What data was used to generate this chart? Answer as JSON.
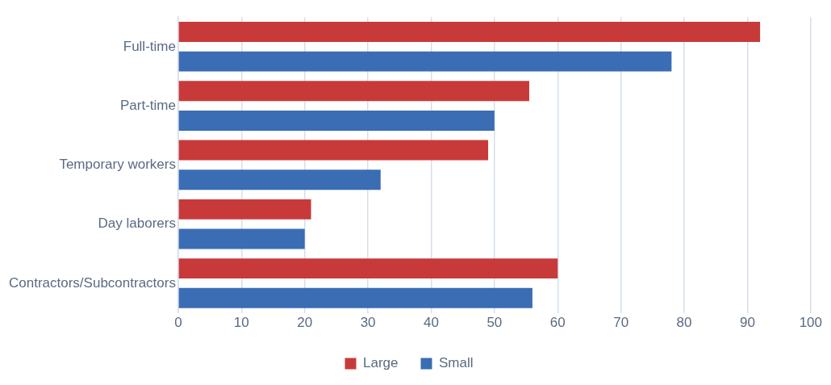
{
  "chart_data": {
    "type": "bar",
    "orientation": "horizontal",
    "categories": [
      "Full-time",
      "Part-time",
      "Temporary workers",
      "Day laborers",
      "Contractors/Subcontractors"
    ],
    "series": [
      {
        "name": "Large",
        "color": "#c83a3a",
        "values": [
          92,
          55.5,
          49,
          21,
          60
        ]
      },
      {
        "name": "Small",
        "color": "#3a6db4",
        "values": [
          78,
          50,
          32,
          20,
          56
        ]
      }
    ],
    "xlim": [
      0,
      100
    ],
    "xticks": [
      0,
      10,
      20,
      30,
      40,
      50,
      60,
      70,
      80,
      90,
      100
    ],
    "grid": "x",
    "legend": "bottom"
  }
}
